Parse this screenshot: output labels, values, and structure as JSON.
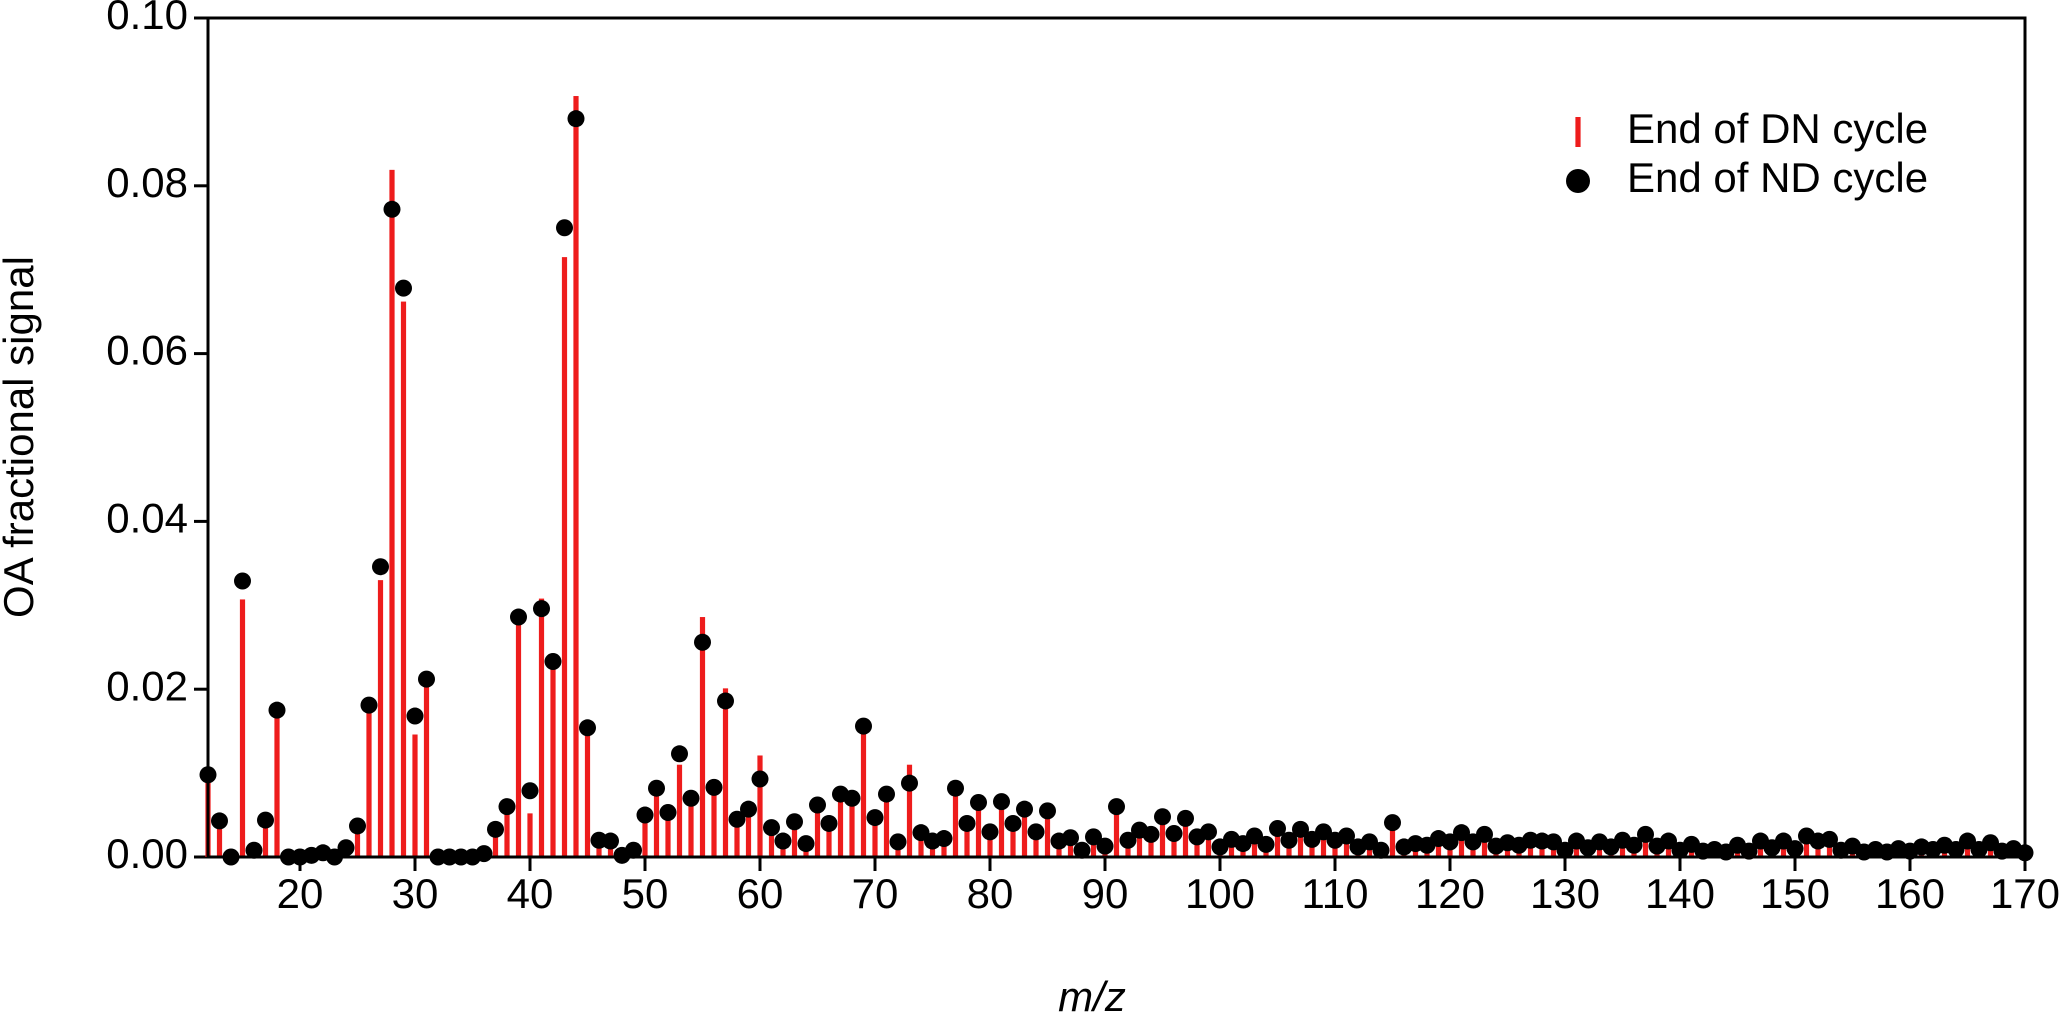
{
  "chart_data": {
    "type": "stick",
    "xlabel": "m/z",
    "ylabel": "OA fractional signal",
    "x": [
      12,
      13,
      14,
      15,
      16,
      17,
      18,
      19,
      20,
      21,
      22,
      23,
      24,
      25,
      26,
      27,
      28,
      29,
      30,
      31,
      32,
      33,
      34,
      35,
      36,
      37,
      38,
      39,
      40,
      41,
      42,
      43,
      44,
      45,
      46,
      47,
      48,
      49,
      50,
      51,
      52,
      53,
      54,
      55,
      56,
      57,
      58,
      59,
      60,
      61,
      62,
      63,
      64,
      65,
      66,
      67,
      68,
      69,
      70,
      71,
      72,
      73,
      74,
      75,
      76,
      77,
      78,
      79,
      80,
      81,
      82,
      83,
      84,
      85,
      86,
      87,
      88,
      89,
      90,
      91,
      92,
      93,
      94,
      95,
      96,
      97,
      98,
      99,
      100,
      101,
      102,
      103,
      104,
      105,
      106,
      107,
      108,
      109,
      110,
      111,
      112,
      113,
      114,
      115,
      116,
      117,
      118,
      119,
      120,
      121,
      122,
      123,
      124,
      125,
      126,
      127,
      128,
      129,
      130,
      131,
      132,
      133,
      134,
      135,
      136,
      137,
      138,
      139,
      140,
      141,
      142,
      143,
      144,
      145,
      146,
      147,
      148,
      149,
      150,
      151,
      152,
      153,
      154,
      155,
      156,
      157,
      158,
      159,
      160,
      161,
      162,
      163,
      164,
      165,
      166,
      167,
      168,
      169,
      170
    ],
    "series": [
      {
        "name": "End of DN cycle",
        "color": "#ee1c1c",
        "marker": "stick",
        "values": [
          0.0095,
          0.004,
          0,
          0.0307,
          0.0007,
          0.004,
          0.017,
          0,
          0,
          0.0002,
          0.0005,
          0,
          0.001,
          0.0035,
          0.018,
          0.033,
          0.0819,
          0.0662,
          0.0146,
          0.021,
          0,
          0,
          0,
          0,
          0.0004,
          0.003,
          0.0055,
          0.028,
          0.0052,
          0.0308,
          0.0225,
          0.0715,
          0.0907,
          0.015,
          0.002,
          0.0018,
          0.0002,
          0.0008,
          0.0045,
          0.0075,
          0.005,
          0.011,
          0.0065,
          0.0286,
          0.008,
          0.0201,
          0.0042,
          0.0055,
          0.0121,
          0.0033,
          0.0018,
          0.004,
          0.0015,
          0.006,
          0.0038,
          0.0072,
          0.0068,
          0.015,
          0.0045,
          0.0072,
          0.0017,
          0.011,
          0.0027,
          0.0018,
          0.002,
          0.008,
          0.0038,
          0.0062,
          0.0028,
          0.0063,
          0.004,
          0.0057,
          0.003,
          0.0055,
          0.0019,
          0.0023,
          0.0008,
          0.0024,
          0.0013,
          0.006,
          0.002,
          0.0032,
          0.0027,
          0.0048,
          0.0028,
          0.0046,
          0.0024,
          0.003,
          0.0012,
          0.0021,
          0.0016,
          0.0025,
          0.0015,
          0.0034,
          0.002,
          0.0033,
          0.0021,
          0.003,
          0.002,
          0.0025,
          0.0012,
          0.0018,
          0.0008,
          0.0041,
          0.0012,
          0.0016,
          0.0014,
          0.0022,
          0.0018,
          0.0029,
          0.0018,
          0.0027,
          0.0013,
          0.0017,
          0.0014,
          0.002,
          0.0019,
          0.0018,
          0.0008,
          0.0019,
          0.0011,
          0.0018,
          0.0012,
          0.002,
          0.0014,
          0.0027,
          0.0013,
          0.0019,
          0.0008,
          0.0015,
          0.0007,
          0.0009,
          0.0006,
          0.0014,
          0.0007,
          0.0019,
          0.0011,
          0.0019,
          0.001,
          0.0025,
          0.0019,
          0.0021,
          0.0008,
          0.0013,
          0.0006,
          0.0009,
          0.0006,
          0.001,
          0.0007,
          0.0012,
          0.0009,
          0.0014,
          0.0009,
          0.0019,
          0.0009,
          0.0017,
          0.0007,
          0.001,
          0.0005
        ]
      },
      {
        "name": "End of ND cycle",
        "color": "#000000",
        "marker": "circle",
        "values": [
          0.0098,
          0.0043,
          0,
          0.0329,
          0.0008,
          0.0044,
          0.0175,
          0,
          0,
          0.0002,
          0.0005,
          0,
          0.0011,
          0.0037,
          0.0181,
          0.0346,
          0.0772,
          0.0678,
          0.0168,
          0.0212,
          0,
          0,
          0,
          0,
          0.0004,
          0.0033,
          0.006,
          0.0286,
          0.0079,
          0.0296,
          0.0233,
          0.075,
          0.088,
          0.0154,
          0.002,
          0.0019,
          0.0002,
          0.0008,
          0.005,
          0.0082,
          0.0053,
          0.0123,
          0.007,
          0.0256,
          0.0083,
          0.0186,
          0.0045,
          0.0057,
          0.0093,
          0.0035,
          0.0019,
          0.0042,
          0.0016,
          0.0062,
          0.004,
          0.0075,
          0.007,
          0.0156,
          0.0047,
          0.0075,
          0.0018,
          0.0088,
          0.0029,
          0.0019,
          0.0022,
          0.0082,
          0.004,
          0.0065,
          0.003,
          0.0066,
          0.004,
          0.0057,
          0.003,
          0.0055,
          0.0019,
          0.0023,
          0.0008,
          0.0024,
          0.0013,
          0.006,
          0.002,
          0.0032,
          0.0027,
          0.0048,
          0.0028,
          0.0046,
          0.0024,
          0.003,
          0.0012,
          0.0021,
          0.0016,
          0.0025,
          0.0015,
          0.0034,
          0.002,
          0.0033,
          0.0021,
          0.003,
          0.002,
          0.0025,
          0.0012,
          0.0018,
          0.0008,
          0.0041,
          0.0012,
          0.0016,
          0.0014,
          0.0022,
          0.0018,
          0.0029,
          0.0018,
          0.0027,
          0.0013,
          0.0017,
          0.0014,
          0.002,
          0.0019,
          0.0018,
          0.0008,
          0.0019,
          0.0011,
          0.0018,
          0.0012,
          0.002,
          0.0014,
          0.0027,
          0.0013,
          0.0019,
          0.0008,
          0.0015,
          0.0007,
          0.0009,
          0.0006,
          0.0014,
          0.0007,
          0.0019,
          0.0011,
          0.0019,
          0.001,
          0.0025,
          0.0019,
          0.0021,
          0.0008,
          0.0013,
          0.0006,
          0.0009,
          0.0006,
          0.001,
          0.0007,
          0.0012,
          0.0009,
          0.0014,
          0.0009,
          0.0019,
          0.0009,
          0.0017,
          0.0007,
          0.001,
          0.0005
        ]
      }
    ],
    "xlim": [
      12,
      170
    ],
    "xticks": [
      20,
      30,
      40,
      50,
      60,
      70,
      80,
      90,
      100,
      110,
      120,
      130,
      140,
      150,
      160,
      170
    ],
    "ylim": [
      0,
      0.1
    ],
    "yticks": [
      {
        "value": 0,
        "label": "0.00"
      },
      {
        "value": 0.02,
        "label": "0.02"
      },
      {
        "value": 0.04,
        "label": "0.04"
      },
      {
        "value": 0.06,
        "label": "0.06"
      },
      {
        "value": 0.08,
        "label": "0.08"
      },
      {
        "value": 0.1,
        "label": "0.10"
      }
    ],
    "legend": "upper right"
  }
}
